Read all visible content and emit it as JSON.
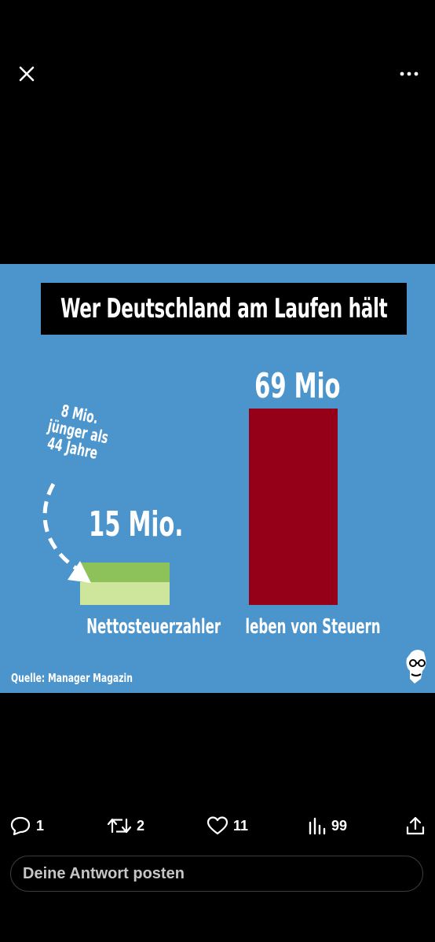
{
  "toolbar": {
    "close_icon": "close-icon",
    "more_icon": "more-horizontal-icon"
  },
  "media": {
    "title": "Wer Deutschland am Laufen hält",
    "annotation_lines": [
      "8 Mio.",
      "jünger als",
      "44 Jahre"
    ],
    "source": "Quelle: Manager Magazin",
    "colors": {
      "background": "#4b94cc",
      "bar_green_dark": "#8dc15a",
      "bar_green_light": "#cde69c",
      "bar_red": "#950018"
    }
  },
  "chart_data": {
    "type": "bar",
    "title": "Wer Deutschland am Laufen hält",
    "categories": [
      "Nettosteuerzahler",
      "leben von Steuern"
    ],
    "values": [
      15,
      69
    ],
    "value_labels": [
      "15 Mio.",
      "69 Mio"
    ],
    "stack_first": {
      "total": 15,
      "subset": 8,
      "subset_label": "8 Mio. jünger als 44 Jahre"
    },
    "ylim": [
      0,
      69
    ],
    "grid": false,
    "source": "Quelle: Manager Magazin"
  },
  "actions": {
    "reply_count": "1",
    "retweet_count": "2",
    "like_count": "11",
    "views_count": "99"
  },
  "reply": {
    "placeholder": "Deine Antwort posten"
  }
}
